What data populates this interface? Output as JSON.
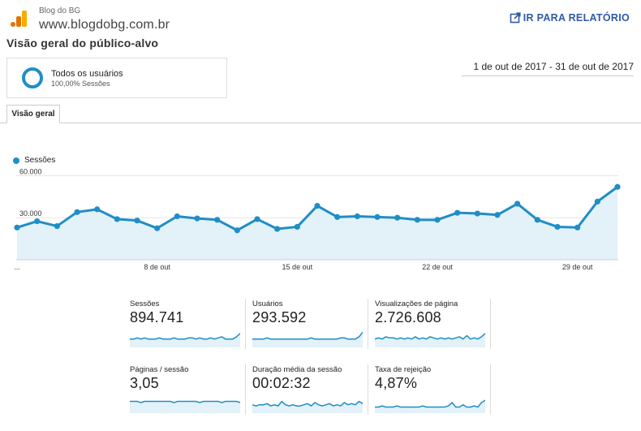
{
  "header": {
    "account_name": "Blog do BG",
    "property_url": "www.blogdobg.com.br",
    "report_link": "IR PARA RELATÓRIO",
    "logo_icon": "analytics-logo-icon",
    "report_icon": "open-external-icon"
  },
  "page_title": "Visão geral do público-alvo",
  "segment": {
    "name": "Todos os usuários",
    "share": "100,00% Sessões"
  },
  "date_range": "1 de out de 2017 - 31 de out de 2017",
  "tabs": [
    {
      "label": "Visão geral"
    }
  ],
  "colors": {
    "accent": "#1f8ec6",
    "fill": "#e3f1f8",
    "orange": "#f9ab00",
    "orange_dark": "#e37400"
  },
  "chart_data": {
    "type": "line",
    "legend": "Sessões",
    "x": [
      "1 out",
      "2 out",
      "3 out",
      "4 out",
      "5 out",
      "6 out",
      "7 out",
      "8 out",
      "9 out",
      "10 out",
      "11 out",
      "12 out",
      "13 out",
      "14 out",
      "15 out",
      "16 out",
      "17 out",
      "18 out",
      "19 out",
      "20 out",
      "21 out",
      "22 out",
      "23 out",
      "24 out",
      "25 out",
      "26 out",
      "27 out",
      "28 out",
      "29 out",
      "30 out",
      "31 out"
    ],
    "values": [
      23000,
      27500,
      24000,
      34000,
      36000,
      29000,
      28000,
      22500,
      31000,
      29500,
      28500,
      21000,
      29000,
      22000,
      23500,
      38500,
      30500,
      31000,
      30500,
      30000,
      28500,
      28500,
      33500,
      33000,
      32000,
      40000,
      28500,
      23500,
      23000,
      41500,
      52000
    ],
    "y_ticks": [
      "60.000",
      "30.000"
    ],
    "ylim": [
      0,
      62000
    ],
    "x_ticks": [
      {
        "label": "...",
        "index": 0
      },
      {
        "label": "8 de out",
        "index": 7
      },
      {
        "label": "15 de out",
        "index": 14
      },
      {
        "label": "22 de out",
        "index": 21
      },
      {
        "label": "29 de out",
        "index": 28
      }
    ]
  },
  "metrics": [
    {
      "label": "Sessões",
      "value": "894.741",
      "spark": [
        6,
        6,
        7,
        6,
        7,
        6,
        6,
        6,
        7,
        6,
        6,
        6,
        7,
        6,
        6,
        6,
        7,
        7,
        6,
        7,
        6,
        6,
        7,
        6,
        7,
        8,
        6,
        6,
        6,
        8,
        11
      ]
    },
    {
      "label": "Usuários",
      "value": "293.592",
      "spark": [
        6,
        6,
        6,
        6,
        7,
        6,
        6,
        6,
        6,
        6,
        6,
        6,
        6,
        6,
        6,
        6,
        7,
        6,
        6,
        6,
        6,
        6,
        6,
        6,
        7,
        7,
        6,
        6,
        6,
        8,
        12
      ]
    },
    {
      "label": "Visualizações de página",
      "value": "2.726.608",
      "spark": [
        6,
        7,
        6,
        8,
        7,
        7,
        6,
        7,
        6,
        7,
        6,
        8,
        6,
        7,
        6,
        8,
        7,
        6,
        7,
        6,
        7,
        6,
        7,
        8,
        6,
        9,
        6,
        7,
        6,
        8,
        11
      ]
    },
    {
      "label": "Páginas / sessão",
      "value": "3,05",
      "spark": [
        9,
        9,
        9,
        8,
        9,
        9,
        9,
        9,
        9,
        9,
        9,
        9,
        8,
        9,
        9,
        9,
        9,
        9,
        9,
        8,
        9,
        9,
        9,
        9,
        9,
        8,
        9,
        9,
        9,
        9,
        8
      ]
    },
    {
      "label": "Duração média da sessão",
      "value": "00:02:32",
      "spark": [
        6,
        5,
        6,
        6,
        7,
        5,
        6,
        5,
        9,
        6,
        5,
        6,
        5,
        5,
        6,
        7,
        5,
        8,
        6,
        5,
        6,
        7,
        5,
        6,
        5,
        8,
        6,
        7,
        6,
        9,
        7
      ]
    },
    {
      "label": "Taxa de rejeição",
      "value": "4,87%",
      "spark": [
        4,
        4,
        5,
        4,
        4,
        4,
        5,
        4,
        4,
        4,
        4,
        4,
        4,
        5,
        4,
        4,
        4,
        4,
        4,
        4,
        5,
        8,
        4,
        4,
        6,
        4,
        4,
        5,
        4,
        8,
        10
      ]
    }
  ]
}
